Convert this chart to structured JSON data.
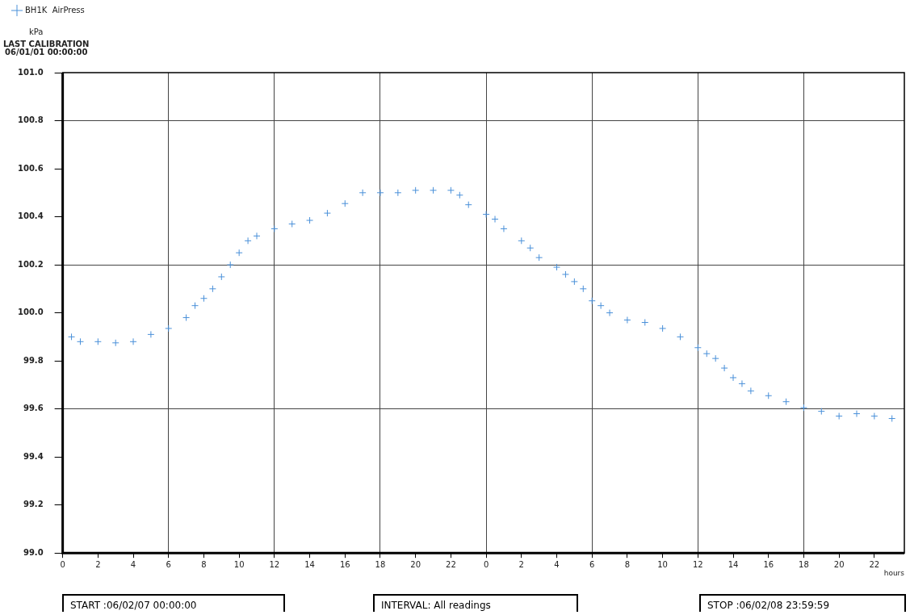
{
  "chart_data": {
    "type": "scatter",
    "ylabel": "kPa",
    "xlabel": "hours",
    "annotations": [
      "LAST CALIBRATION\n06/01/01 00:00:00",
      "START :06/02/07 00:00:00",
      "INTERVAL: All readings",
      "STOP :06/02/08 23:59:59"
    ],
    "series": [
      {
        "name": "BH1K  AirPress",
        "color": "#4a90d9",
        "x": [
          "--02-07T00:30",
          "--02-07T01:00",
          "--02-07T02:00",
          "--02-07T03:00",
          "--02-07T04:00",
          "--02-07T05:00",
          "--02-07T06:00",
          "--02-07T07:00",
          "--02-07T07:30",
          "--02-07T08:00",
          "--02-07T08:30",
          "--02-07T09:00",
          "--02-07T09:30",
          "--02-07T10:00",
          "--02-07T10:30",
          "--02-07T11:00",
          "--02-07T12:00",
          "--02-07T13:00",
          "--02-07T14:00",
          "--02-07T15:00",
          "--02-07T16:00",
          "--02-07T17:00",
          "--02-07T18:00",
          "--02-07T19:00",
          "--02-07T20:00",
          "--02-07T21:00",
          "--02-07T22:00",
          "--02-07T22:30",
          "--02-07T23:00",
          "--02-08T00:00",
          "--02-08T00:30",
          "--02-08T01:00",
          "--02-08T02:00",
          "--02-08T02:30",
          "--02-08T03:00",
          "--02-08T04:00",
          "--02-08T04:30",
          "--02-08T05:00",
          "--02-08T05:30",
          "--02-08T06:00",
          "--02-08T06:30",
          "--02-08T07:00",
          "--02-08T08:00",
          "--02-08T09:00",
          "--02-08T10:00",
          "--02-08T11:00",
          "--02-08T12:00",
          "--02-08T12:30",
          "--02-08T13:00",
          "--02-08T13:30",
          "--02-08T14:00",
          "--02-08T14:30",
          "--02-08T15:00",
          "--02-08T16:00",
          "--02-08T17:00",
          "--02-08T18:00",
          "--02-08T19:00",
          "--02-08T20:00",
          "--02-08T21:00",
          "--02-08T22:00",
          "--02-08T23:00"
        ],
        "values": [
          99.9,
          99.88,
          99.88,
          99.875,
          99.88,
          99.91,
          99.935,
          99.98,
          100.03,
          100.06,
          100.1,
          100.15,
          100.2,
          100.25,
          100.3,
          100.32,
          100.35,
          100.37,
          100.385,
          100.415,
          100.455,
          100.5,
          100.5,
          100.5,
          100.51,
          100.51,
          100.51,
          100.49,
          100.45,
          100.41,
          100.39,
          100.35,
          100.3,
          100.27,
          100.23,
          100.19,
          100.16,
          100.13,
          100.1,
          100.05,
          100.03,
          100,
          99.97,
          99.96,
          99.935,
          99.9,
          99.855,
          99.83,
          99.81,
          99.77,
          99.73,
          99.705,
          99.675,
          99.655,
          99.63,
          99.605,
          99.59,
          99.57,
          99.58,
          99.57,
          99.56
        ]
      }
    ],
    "marker": "cross",
    "legend": "top left",
    "grid": true,
    "xlim": [
      "--02-07T00:00",
      "--02-08T23:42"
    ],
    "xticks": [
      {
        "value": "--02-07T00:00",
        "label": "0"
      },
      {
        "value": "--02-07T02:00",
        "label": "2"
      },
      {
        "value": "--02-07T04:00",
        "label": "4"
      },
      {
        "value": "--02-07T06:00",
        "label": "6"
      },
      {
        "value": "--02-07T08:00",
        "label": "8"
      },
      {
        "value": "--02-07T10:00",
        "label": "10"
      },
      {
        "value": "--02-07T12:00",
        "label": "12"
      },
      {
        "value": "--02-07T14:00",
        "label": "14"
      },
      {
        "value": "--02-07T16:00",
        "label": "16"
      },
      {
        "value": "--02-07T18:00",
        "label": "18"
      },
      {
        "value": "--02-07T20:00",
        "label": "20"
      },
      {
        "value": "--02-07T22:00",
        "label": "22"
      },
      {
        "value": "--02-08T00:00",
        "label": "0"
      },
      {
        "value": "--02-08T02:00",
        "label": "2"
      },
      {
        "value": "--02-08T04:00",
        "label": "4"
      },
      {
        "value": "--02-08T06:00",
        "label": "6"
      },
      {
        "value": "--02-08T08:00",
        "label": "8"
      },
      {
        "value": "--02-08T10:00",
        "label": "10"
      },
      {
        "value": "--02-08T12:00",
        "label": "12"
      },
      {
        "value": "--02-08T14:00",
        "label": "14"
      },
      {
        "value": "--02-08T16:00",
        "label": "16"
      },
      {
        "value": "--02-08T18:00",
        "label": "18"
      },
      {
        "value": "--02-08T20:00",
        "label": "20"
      },
      {
        "value": "--02-08T22:00",
        "label": "22"
      }
    ],
    "ylim": [
      99.0,
      101.0
    ],
    "yticks": [
      {
        "value": 99.0,
        "label": "99.0"
      },
      99.2,
      99.4,
      99.6,
      99.8,
      {
        "value": 100.0,
        "label": "100.0"
      },
      100.2,
      100.4,
      100.6,
      100.8,
      {
        "value": 101.0,
        "label": "101.0"
      }
    ]
  }
}
